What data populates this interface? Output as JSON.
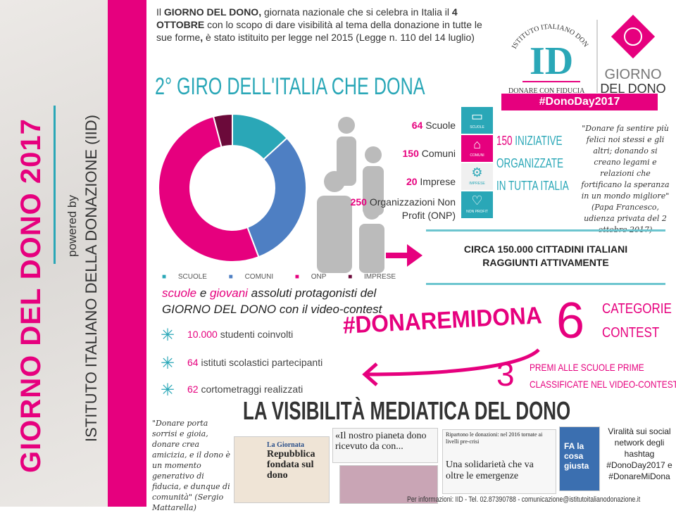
{
  "sidebar": {
    "title": "GIORNO DEL DONO 2017",
    "powered_by": "powered by",
    "institute": "ISTITUTO ITALIANO DELLA DONAZIONE (IID)"
  },
  "intro": {
    "p1": "Il ",
    "b1": "GIORNO DEL DONO,",
    "p2": " giornata nazionale che si celebra in Italia il ",
    "b2": "4 OTTOBRE",
    "p3": " con lo scopo di dare visibilità al tema della donazione in tutte le sue forme",
    "b3": ",",
    "p4": " è stato istituito per legge nel 2015 (Legge n. 110 del 14 luglio)"
  },
  "headline": "2° GIRO DELL'ITALIA CHE DONA",
  "logo": {
    "arc_text": "ISTITUTO ITALIANO DONAZIONE",
    "monogram": "ID",
    "tagline": "DONARE CON FIDUCIA",
    "brand1": "GIORNO",
    "brand2": "DEL DONO",
    "hashtag": "#DonoDay2017"
  },
  "stats": [
    {
      "n": "64",
      "label": "Scuole",
      "icon": "book-icon",
      "icon_label": "SCUOLE",
      "color": "#2aa7b7"
    },
    {
      "n": "150",
      "label": "Comuni",
      "icon": "building-icon",
      "icon_label": "COMUNI",
      "color": "#e6007e"
    },
    {
      "n": "20",
      "label": "Imprese",
      "icon": "gears-icon",
      "icon_label": "IMPRESE",
      "color": "#f0f0f0"
    },
    {
      "n": "250",
      "label": "Organizzazioni Non Profit (ONP)",
      "icon": "heart-icon",
      "icon_label": "NON PROFIT",
      "color": "#2aa7b7"
    }
  ],
  "iniziative": {
    "n": "150",
    "l1": " INIZIATIVE",
    "l2": "ORGANIZZATE",
    "l3": "IN TUTTA ITALIA"
  },
  "papa_quote": "\"Donare fa sentire più felici noi stessi e gli altri; donando si creano legami e relazioni che fortificano la speranza in un mondo migliore\" (Papa Francesco, udienza privata del 2 ottobre 2017)",
  "cittadini": {
    "l1": "CIRCA 150.000 CITTADINI ITALIANI",
    "l2": "RAGGIUNTI ATTIVAMENTE"
  },
  "chart_data": {
    "type": "pie",
    "donut": true,
    "categories": [
      "SCUOLE",
      "COMUNI",
      "ONP",
      "IMPRESE"
    ],
    "values": [
      64,
      150,
      250,
      20
    ],
    "colors": [
      "#2aa7b7",
      "#4e7fc3",
      "#e6007e",
      "#6b0a3a"
    ],
    "legend": "bottom"
  },
  "contest": {
    "s1": "scuole",
    "s2": " e ",
    "s3": "giovani",
    "s4": " assoluti protagonisti del",
    "s5": "GIORNO DEL DONO con il video-contest",
    "bullets": [
      {
        "n": "10.000",
        "t": " studenti coinvolti"
      },
      {
        "n": "64",
        "t": " istituti scolastici partecipanti"
      },
      {
        "n": "62",
        "t": " cortometraggi realizzati"
      }
    ],
    "hashtag": "#DONAREMIDONA",
    "six": "6",
    "cat1": "CATEGORIE",
    "cat2": "CONTEST",
    "three": "3",
    "premi1": "PREMI ALLE SCUOLE PRIME",
    "premi2": "CLASSIFICATE NEL VIDEO-CONTEST"
  },
  "media": {
    "title": "LA VISIBILITÀ MEDIATICA DEL DONO",
    "mattarella": "\"Donare porta sorrisi e gioia, donare crea amicizia, e il dono è un momento generativo di fiducia, e dunque di comunità\" (Sergio Mattarella)",
    "clip1_tag": "La Giornata",
    "clip1_head": "Repubblica fondata sul dono",
    "clip2_head": "«Il nostro pianeta dono ricevuto da con...",
    "clip3_top": "Ripartono le donazioni: nel 2016 tornate ai livelli pre-crisi",
    "clip3_head": "Una solidarietà che va oltre le emergenze",
    "clip4_text": "FA la cosa giusta",
    "viral": "Viralità sui social network degli hashtag #DonoDay2017 e #DonareMiDona"
  },
  "footer": "Per informazioni: IID - Tel. 02.87390788 - comunicazione@istitutoitalianodonazione.it"
}
